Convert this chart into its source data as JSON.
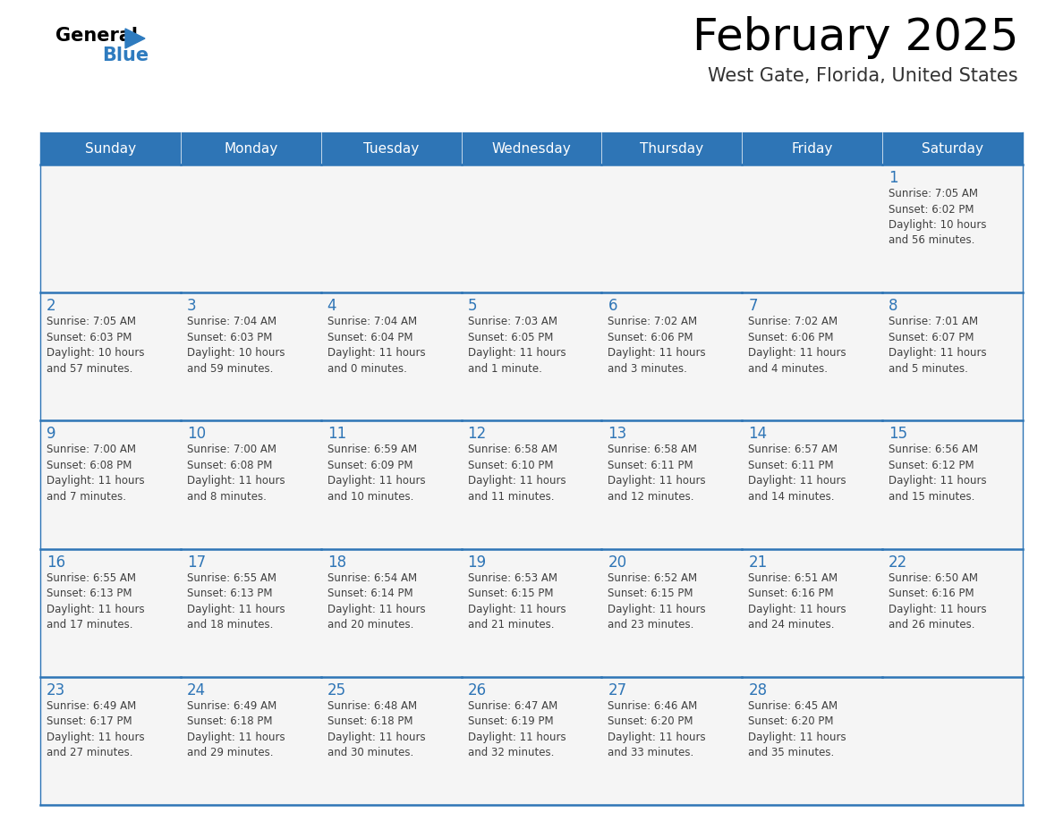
{
  "title": "February 2025",
  "subtitle": "West Gate, Florida, United States",
  "header_color": "#2e75b6",
  "header_text_color": "#ffffff",
  "cell_bg_color": "#f5f5f5",
  "cell_border_color": "#2e75b6",
  "day_number_color": "#2e75b6",
  "text_color": "#404040",
  "weekdays": [
    "Sunday",
    "Monday",
    "Tuesday",
    "Wednesday",
    "Thursday",
    "Friday",
    "Saturday"
  ],
  "weeks": [
    [
      {
        "day": null,
        "info": ""
      },
      {
        "day": null,
        "info": ""
      },
      {
        "day": null,
        "info": ""
      },
      {
        "day": null,
        "info": ""
      },
      {
        "day": null,
        "info": ""
      },
      {
        "day": null,
        "info": ""
      },
      {
        "day": 1,
        "info": "Sunrise: 7:05 AM\nSunset: 6:02 PM\nDaylight: 10 hours\nand 56 minutes."
      }
    ],
    [
      {
        "day": 2,
        "info": "Sunrise: 7:05 AM\nSunset: 6:03 PM\nDaylight: 10 hours\nand 57 minutes."
      },
      {
        "day": 3,
        "info": "Sunrise: 7:04 AM\nSunset: 6:03 PM\nDaylight: 10 hours\nand 59 minutes."
      },
      {
        "day": 4,
        "info": "Sunrise: 7:04 AM\nSunset: 6:04 PM\nDaylight: 11 hours\nand 0 minutes."
      },
      {
        "day": 5,
        "info": "Sunrise: 7:03 AM\nSunset: 6:05 PM\nDaylight: 11 hours\nand 1 minute."
      },
      {
        "day": 6,
        "info": "Sunrise: 7:02 AM\nSunset: 6:06 PM\nDaylight: 11 hours\nand 3 minutes."
      },
      {
        "day": 7,
        "info": "Sunrise: 7:02 AM\nSunset: 6:06 PM\nDaylight: 11 hours\nand 4 minutes."
      },
      {
        "day": 8,
        "info": "Sunrise: 7:01 AM\nSunset: 6:07 PM\nDaylight: 11 hours\nand 5 minutes."
      }
    ],
    [
      {
        "day": 9,
        "info": "Sunrise: 7:00 AM\nSunset: 6:08 PM\nDaylight: 11 hours\nand 7 minutes."
      },
      {
        "day": 10,
        "info": "Sunrise: 7:00 AM\nSunset: 6:08 PM\nDaylight: 11 hours\nand 8 minutes."
      },
      {
        "day": 11,
        "info": "Sunrise: 6:59 AM\nSunset: 6:09 PM\nDaylight: 11 hours\nand 10 minutes."
      },
      {
        "day": 12,
        "info": "Sunrise: 6:58 AM\nSunset: 6:10 PM\nDaylight: 11 hours\nand 11 minutes."
      },
      {
        "day": 13,
        "info": "Sunrise: 6:58 AM\nSunset: 6:11 PM\nDaylight: 11 hours\nand 12 minutes."
      },
      {
        "day": 14,
        "info": "Sunrise: 6:57 AM\nSunset: 6:11 PM\nDaylight: 11 hours\nand 14 minutes."
      },
      {
        "day": 15,
        "info": "Sunrise: 6:56 AM\nSunset: 6:12 PM\nDaylight: 11 hours\nand 15 minutes."
      }
    ],
    [
      {
        "day": 16,
        "info": "Sunrise: 6:55 AM\nSunset: 6:13 PM\nDaylight: 11 hours\nand 17 minutes."
      },
      {
        "day": 17,
        "info": "Sunrise: 6:55 AM\nSunset: 6:13 PM\nDaylight: 11 hours\nand 18 minutes."
      },
      {
        "day": 18,
        "info": "Sunrise: 6:54 AM\nSunset: 6:14 PM\nDaylight: 11 hours\nand 20 minutes."
      },
      {
        "day": 19,
        "info": "Sunrise: 6:53 AM\nSunset: 6:15 PM\nDaylight: 11 hours\nand 21 minutes."
      },
      {
        "day": 20,
        "info": "Sunrise: 6:52 AM\nSunset: 6:15 PM\nDaylight: 11 hours\nand 23 minutes."
      },
      {
        "day": 21,
        "info": "Sunrise: 6:51 AM\nSunset: 6:16 PM\nDaylight: 11 hours\nand 24 minutes."
      },
      {
        "day": 22,
        "info": "Sunrise: 6:50 AM\nSunset: 6:16 PM\nDaylight: 11 hours\nand 26 minutes."
      }
    ],
    [
      {
        "day": 23,
        "info": "Sunrise: 6:49 AM\nSunset: 6:17 PM\nDaylight: 11 hours\nand 27 minutes."
      },
      {
        "day": 24,
        "info": "Sunrise: 6:49 AM\nSunset: 6:18 PM\nDaylight: 11 hours\nand 29 minutes."
      },
      {
        "day": 25,
        "info": "Sunrise: 6:48 AM\nSunset: 6:18 PM\nDaylight: 11 hours\nand 30 minutes."
      },
      {
        "day": 26,
        "info": "Sunrise: 6:47 AM\nSunset: 6:19 PM\nDaylight: 11 hours\nand 32 minutes."
      },
      {
        "day": 27,
        "info": "Sunrise: 6:46 AM\nSunset: 6:20 PM\nDaylight: 11 hours\nand 33 minutes."
      },
      {
        "day": 28,
        "info": "Sunrise: 6:45 AM\nSunset: 6:20 PM\nDaylight: 11 hours\nand 35 minutes."
      },
      {
        "day": null,
        "info": ""
      }
    ]
  ],
  "fig_width": 11.88,
  "fig_height": 9.18,
  "dpi": 100
}
